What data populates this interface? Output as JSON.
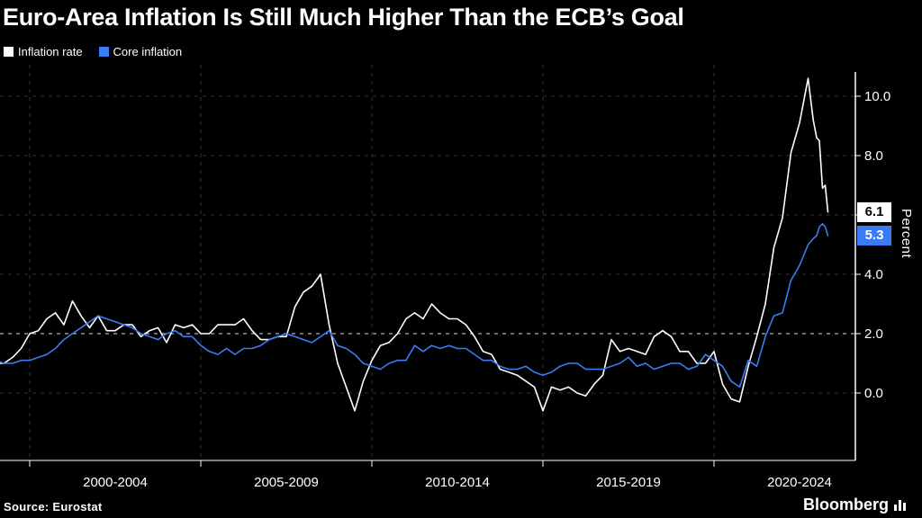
{
  "header": {
    "title": "Euro-Area Inflation Is Still Much Higher Than the ECB’s Goal",
    "legend": [
      {
        "label": "Inflation rate",
        "color": "#ffffff"
      },
      {
        "label": "Core inflation",
        "color": "#3b7cf6"
      }
    ]
  },
  "footer": {
    "source": "Source: Eurostat",
    "brand": "Bloomberg"
  },
  "chart_data": {
    "type": "line",
    "title": "Euro-Area Inflation Is Still Much Higher Than the ECB’s Goal",
    "xlabel": "",
    "ylabel": "Percent",
    "ylim": [
      -2.5,
      11
    ],
    "y_ticks": [
      0,
      2,
      4,
      6,
      8,
      10
    ],
    "goal_value": 2,
    "grid": "dashed",
    "legend_position": "top-left",
    "x_labels": [
      "2000-2004",
      "2005-2009",
      "2010-2014",
      "2015-2019",
      "2020-2024"
    ],
    "x_gridlines": [
      2000,
      2005,
      2010,
      2015,
      2020
    ],
    "x": [
      1999,
      1999.25,
      1999.5,
      1999.75,
      2000,
      2000.25,
      2000.5,
      2000.75,
      2001,
      2001.25,
      2001.5,
      2001.75,
      2002,
      2002.25,
      2002.5,
      2002.75,
      2003,
      2003.25,
      2003.5,
      2003.75,
      2004,
      2004.25,
      2004.5,
      2004.75,
      2005,
      2005.25,
      2005.5,
      2005.75,
      2006,
      2006.25,
      2006.5,
      2006.75,
      2007,
      2007.25,
      2007.5,
      2007.75,
      2008,
      2008.25,
      2008.5,
      2008.75,
      2009,
      2009.25,
      2009.5,
      2009.75,
      2010,
      2010.25,
      2010.5,
      2010.75,
      2011,
      2011.25,
      2011.5,
      2011.75,
      2012,
      2012.25,
      2012.5,
      2012.75,
      2013,
      2013.25,
      2013.5,
      2013.75,
      2014,
      2014.25,
      2014.5,
      2014.75,
      2015,
      2015.25,
      2015.5,
      2015.75,
      2016,
      2016.25,
      2016.5,
      2016.75,
      2017,
      2017.25,
      2017.5,
      2017.75,
      2018,
      2018.25,
      2018.5,
      2018.75,
      2019,
      2019.25,
      2019.5,
      2019.75,
      2020,
      2020.25,
      2020.5,
      2020.75,
      2021,
      2021.25,
      2021.5,
      2021.75,
      2022,
      2022.25,
      2022.5,
      2022.75,
      2022.9,
      2023,
      2023.08,
      2023.17,
      2023.25,
      2023.33
    ],
    "series": [
      {
        "name": "Inflation rate",
        "color": "#ffffff",
        "values": [
          1.0,
          1.0,
          1.2,
          1.5,
          2.0,
          2.1,
          2.5,
          2.7,
          2.3,
          3.1,
          2.6,
          2.2,
          2.6,
          2.1,
          2.1,
          2.3,
          2.3,
          1.9,
          2.1,
          2.2,
          1.7,
          2.3,
          2.2,
          2.3,
          2.0,
          2.0,
          2.3,
          2.3,
          2.3,
          2.5,
          2.1,
          1.8,
          1.8,
          1.9,
          1.9,
          2.9,
          3.4,
          3.6,
          4.0,
          2.3,
          1.0,
          0.2,
          -0.6,
          0.4,
          1.1,
          1.6,
          1.7,
          2.0,
          2.5,
          2.7,
          2.5,
          3.0,
          2.7,
          2.5,
          2.5,
          2.3,
          1.9,
          1.4,
          1.3,
          0.8,
          0.7,
          0.6,
          0.4,
          0.2,
          -0.6,
          0.2,
          0.1,
          0.2,
          0.0,
          -0.1,
          0.3,
          0.6,
          1.8,
          1.4,
          1.5,
          1.4,
          1.3,
          1.9,
          2.1,
          1.9,
          1.4,
          1.4,
          1.0,
          1.0,
          1.4,
          0.3,
          -0.2,
          -0.3,
          0.9,
          1.9,
          3.0,
          4.9,
          5.9,
          8.1,
          9.1,
          10.6,
          9.2,
          8.6,
          8.5,
          6.9,
          7.0,
          6.1
        ]
      },
      {
        "name": "Core inflation",
        "color": "#3b7cf6",
        "values": [
          1.1,
          1.0,
          1.0,
          1.1,
          1.1,
          1.2,
          1.3,
          1.5,
          1.8,
          2.0,
          2.2,
          2.4,
          2.6,
          2.5,
          2.4,
          2.3,
          2.2,
          2.0,
          1.9,
          1.8,
          2.0,
          2.1,
          1.9,
          1.9,
          1.6,
          1.4,
          1.3,
          1.5,
          1.3,
          1.5,
          1.5,
          1.6,
          1.8,
          1.9,
          2.0,
          1.9,
          1.8,
          1.7,
          1.9,
          2.1,
          1.6,
          1.5,
          1.3,
          1.0,
          0.9,
          0.8,
          1.0,
          1.1,
          1.1,
          1.6,
          1.4,
          1.6,
          1.5,
          1.6,
          1.5,
          1.5,
          1.3,
          1.1,
          1.1,
          0.9,
          0.8,
          0.8,
          0.9,
          0.7,
          0.6,
          0.7,
          0.9,
          1.0,
          1.0,
          0.8,
          0.8,
          0.8,
          0.9,
          1.0,
          1.2,
          0.9,
          1.0,
          0.8,
          0.9,
          1.0,
          1.0,
          0.8,
          0.9,
          1.3,
          1.1,
          0.9,
          0.4,
          0.2,
          1.1,
          0.9,
          1.9,
          2.6,
          2.7,
          3.8,
          4.3,
          5.0,
          5.2,
          5.3,
          5.6,
          5.7,
          5.6,
          5.3
        ]
      }
    ],
    "end_labels": [
      {
        "value": "6.1",
        "y": 6.1,
        "bg": "#ffffff",
        "fg": "#000000"
      },
      {
        "value": "5.3",
        "y": 5.3,
        "bg": "#3b7cf6",
        "fg": "#ffffff"
      }
    ]
  }
}
